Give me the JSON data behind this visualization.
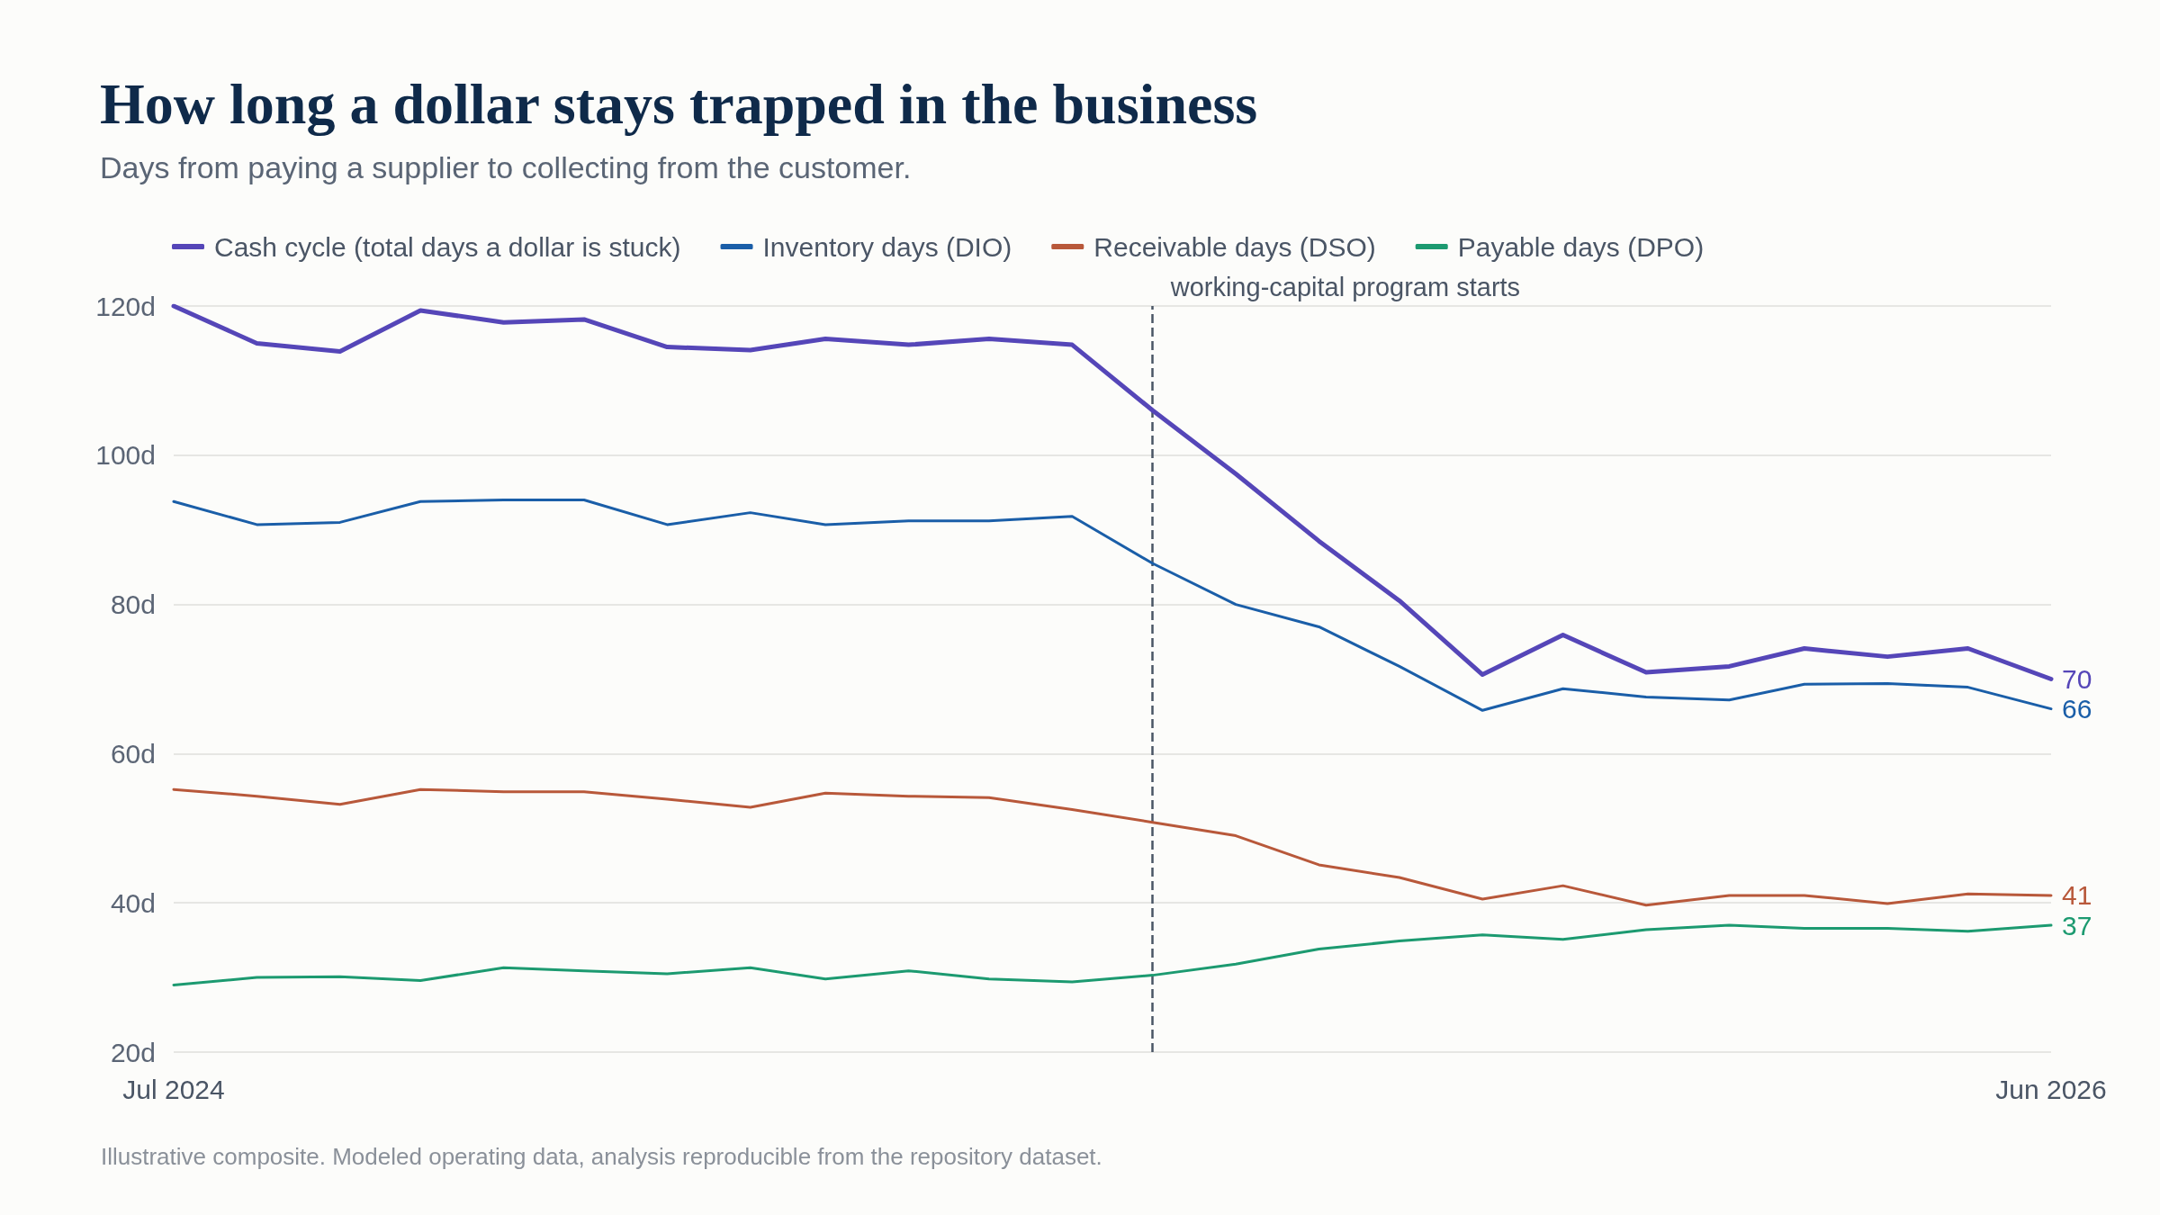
{
  "chart_data": {
    "type": "line",
    "title": "How long a dollar stays trapped in the business",
    "subtitle": "Days from paying a supplier to collecting from the customer.",
    "x": [
      "2024-07",
      "2024-08",
      "2024-09",
      "2024-10",
      "2024-11",
      "2024-12",
      "2025-01",
      "2025-02",
      "2025-03",
      "2025-04",
      "2025-05",
      "2025-06",
      "2025-07",
      "2025-08",
      "2025-09",
      "2025-10",
      "2025-11",
      "2025-12",
      "2026-01",
      "2026-02",
      "2026-03",
      "2026-04",
      "2026-05",
      "2026-06"
    ],
    "series": [
      {
        "name": "Cash cycle (total days a dollar is stuck)",
        "color": "#5546b8",
        "values": [
          120,
          115,
          113.9,
          119.4,
          117.8,
          118.2,
          114.5,
          114.1,
          115.6,
          114.8,
          115.6,
          114.8,
          106,
          97.5,
          88.5,
          80.5,
          70.6,
          75.9,
          70.9,
          71.7,
          74.1,
          73,
          74.1,
          70
        ],
        "value_labels": [
          null,
          null,
          null,
          null,
          null,
          null,
          null,
          null,
          null,
          null,
          null,
          null,
          null,
          null,
          null,
          null,
          null,
          null,
          null,
          null,
          null,
          null,
          null,
          "70"
        ]
      },
      {
        "name": "Inventory days (DIO)",
        "color": "#1a5ea8",
        "values": [
          93.8,
          90.7,
          91,
          93.8,
          94,
          94,
          90.7,
          92.3,
          90.7,
          91.2,
          91.2,
          91.8,
          85.5,
          80,
          77,
          71.7,
          65.8,
          68.7,
          67.6,
          67.2,
          69.3,
          69.4,
          68.9,
          66
        ],
        "value_labels": [
          null,
          null,
          null,
          null,
          null,
          null,
          null,
          null,
          null,
          null,
          null,
          null,
          null,
          null,
          null,
          null,
          null,
          null,
          null,
          null,
          null,
          null,
          null,
          "66"
        ]
      },
      {
        "name": "Receivable days (DSO)",
        "color": "#b8583a",
        "values": [
          55.2,
          54.3,
          53.2,
          55.2,
          54.9,
          54.9,
          53.9,
          52.8,
          54.7,
          54.3,
          54.1,
          52.5,
          50.8,
          49,
          45.1,
          43.4,
          40.5,
          42.3,
          39.7,
          41,
          41,
          39.9,
          41.2,
          41
        ],
        "value_labels": [
          null,
          null,
          null,
          null,
          null,
          null,
          null,
          null,
          null,
          null,
          null,
          null,
          null,
          null,
          null,
          null,
          null,
          null,
          null,
          null,
          null,
          null,
          null,
          "41"
        ]
      },
      {
        "name": "Payable days (DPO)",
        "color": "#1c9a70",
        "values": [
          29,
          30,
          30.1,
          29.6,
          31.3,
          30.9,
          30.5,
          31.3,
          29.8,
          30.9,
          29.8,
          29.4,
          30.3,
          31.8,
          33.8,
          34.9,
          35.7,
          35.1,
          36.4,
          37,
          36.6,
          36.6,
          36.2,
          37
        ],
        "value_labels": [
          null,
          null,
          null,
          null,
          null,
          null,
          null,
          null,
          null,
          null,
          null,
          null,
          null,
          null,
          null,
          null,
          null,
          null,
          null,
          null,
          null,
          null,
          null,
          "37"
        ]
      }
    ],
    "xlim": [
      "2024-07",
      "2026-06"
    ],
    "xticks": [
      {
        "value": "2024-07",
        "label": "Jul 2024"
      },
      {
        "value": "2026-06",
        "label": "Jun 2026"
      }
    ],
    "ylim": [
      20,
      120
    ],
    "yticks": [
      {
        "value": 20,
        "label": "20d"
      },
      {
        "value": 40,
        "label": "40d"
      },
      {
        "value": 60,
        "label": "60d"
      },
      {
        "value": 80,
        "label": "80d"
      },
      {
        "value": 100,
        "label": "100d"
      },
      {
        "value": 120,
        "label": "120d"
      }
    ],
    "grid": "y",
    "legend": "top left",
    "marker": "none",
    "line_style": "solid",
    "ref_lines": [
      {
        "axis": "x",
        "value": "2025-07",
        "label": "working-capital program starts",
        "color": "#4a5565",
        "line_style": "dashed"
      }
    ],
    "annotations": [
      "Illustrative composite. Modeled operating data, analysis reproducible from the repository dataset."
    ]
  }
}
